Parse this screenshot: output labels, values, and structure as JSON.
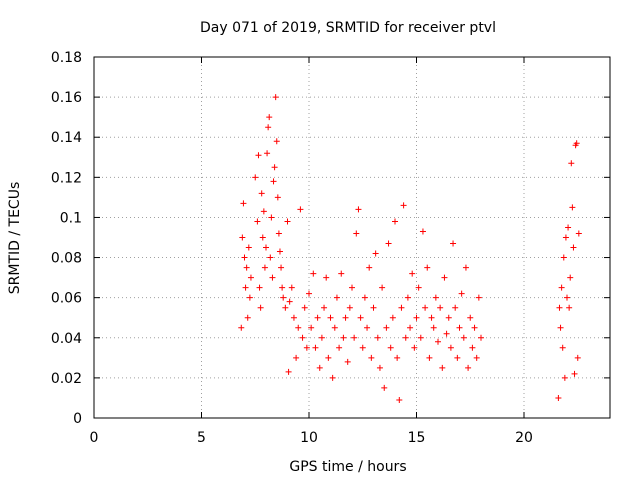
{
  "chart_data": {
    "type": "scatter",
    "title": "Day 071 of 2019, SRMTID for receiver ptvl",
    "xlabel": "GPS time / hours",
    "ylabel": "SRMTID / TECUs",
    "xlim": [
      0,
      24
    ],
    "ylim": [
      0,
      0.18
    ],
    "xticks": [
      0,
      5,
      10,
      15,
      20
    ],
    "xtick_labels": [
      "0",
      "5",
      "10",
      "15",
      "20"
    ],
    "yticks": [
      0,
      0.02,
      0.04,
      0.06,
      0.08,
      0.1,
      0.12,
      0.14,
      0.16,
      0.18
    ],
    "ytick_labels": [
      "0",
      "0.02",
      "0.04",
      "0.06",
      "0.08",
      "0.1",
      "0.12",
      "0.14",
      "0.16",
      "0.18"
    ],
    "grid": true,
    "marker": "+",
    "series": [
      {
        "name": "SRMTID",
        "color": "#ff0000",
        "points": [
          [
            6.85,
            0.045
          ],
          [
            6.9,
            0.09
          ],
          [
            6.95,
            0.107
          ],
          [
            7.0,
            0.08
          ],
          [
            7.05,
            0.065
          ],
          [
            7.1,
            0.075
          ],
          [
            7.15,
            0.05
          ],
          [
            7.2,
            0.085
          ],
          [
            7.25,
            0.06
          ],
          [
            7.3,
            0.07
          ],
          [
            7.5,
            0.12
          ],
          [
            7.6,
            0.098
          ],
          [
            7.65,
            0.131
          ],
          [
            7.7,
            0.065
          ],
          [
            7.75,
            0.055
          ],
          [
            7.8,
            0.112
          ],
          [
            7.85,
            0.09
          ],
          [
            7.9,
            0.103
          ],
          [
            7.95,
            0.075
          ],
          [
            8.0,
            0.085
          ],
          [
            8.05,
            0.132
          ],
          [
            8.1,
            0.145
          ],
          [
            8.15,
            0.15
          ],
          [
            8.2,
            0.08
          ],
          [
            8.25,
            0.1
          ],
          [
            8.3,
            0.07
          ],
          [
            8.35,
            0.118
          ],
          [
            8.4,
            0.125
          ],
          [
            8.45,
            0.16
          ],
          [
            8.5,
            0.138
          ],
          [
            8.55,
            0.11
          ],
          [
            8.6,
            0.092
          ],
          [
            8.65,
            0.083
          ],
          [
            8.7,
            0.075
          ],
          [
            8.75,
            0.065
          ],
          [
            8.8,
            0.06
          ],
          [
            8.9,
            0.055
          ],
          [
            9.0,
            0.098
          ],
          [
            9.05,
            0.023
          ],
          [
            9.1,
            0.058
          ],
          [
            9.2,
            0.065
          ],
          [
            9.3,
            0.05
          ],
          [
            9.4,
            0.03
          ],
          [
            9.5,
            0.045
          ],
          [
            9.6,
            0.104
          ],
          [
            9.7,
            0.04
          ],
          [
            9.8,
            0.055
          ],
          [
            9.9,
            0.035
          ],
          [
            10.0,
            0.062
          ],
          [
            10.1,
            0.045
          ],
          [
            10.2,
            0.072
          ],
          [
            10.3,
            0.035
          ],
          [
            10.4,
            0.05
          ],
          [
            10.5,
            0.025
          ],
          [
            10.6,
            0.04
          ],
          [
            10.7,
            0.055
          ],
          [
            10.8,
            0.07
          ],
          [
            10.9,
            0.03
          ],
          [
            11.0,
            0.05
          ],
          [
            11.1,
            0.02
          ],
          [
            11.2,
            0.045
          ],
          [
            11.3,
            0.06
          ],
          [
            11.4,
            0.035
          ],
          [
            11.5,
            0.072
          ],
          [
            11.6,
            0.04
          ],
          [
            11.7,
            0.05
          ],
          [
            11.8,
            0.028
          ],
          [
            11.9,
            0.055
          ],
          [
            12.0,
            0.065
          ],
          [
            12.1,
            0.04
          ],
          [
            12.2,
            0.092
          ],
          [
            12.3,
            0.104
          ],
          [
            12.4,
            0.05
          ],
          [
            12.5,
            0.035
          ],
          [
            12.6,
            0.06
          ],
          [
            12.7,
            0.045
          ],
          [
            12.8,
            0.075
          ],
          [
            12.9,
            0.03
          ],
          [
            13.0,
            0.055
          ],
          [
            13.1,
            0.082
          ],
          [
            13.2,
            0.04
          ],
          [
            13.3,
            0.025
          ],
          [
            13.4,
            0.065
          ],
          [
            13.5,
            0.015
          ],
          [
            13.6,
            0.045
          ],
          [
            13.7,
            0.087
          ],
          [
            13.8,
            0.035
          ],
          [
            13.9,
            0.05
          ],
          [
            14.0,
            0.098
          ],
          [
            14.1,
            0.03
          ],
          [
            14.2,
            0.009
          ],
          [
            14.3,
            0.055
          ],
          [
            14.4,
            0.106
          ],
          [
            14.5,
            0.04
          ],
          [
            14.6,
            0.06
          ],
          [
            14.7,
            0.045
          ],
          [
            14.8,
            0.072
          ],
          [
            14.9,
            0.035
          ],
          [
            15.0,
            0.05
          ],
          [
            15.1,
            0.065
          ],
          [
            15.2,
            0.04
          ],
          [
            15.3,
            0.093
          ],
          [
            15.4,
            0.055
          ],
          [
            15.5,
            0.075
          ],
          [
            15.6,
            0.03
          ],
          [
            15.7,
            0.05
          ],
          [
            15.8,
            0.045
          ],
          [
            15.9,
            0.06
          ],
          [
            16.0,
            0.038
          ],
          [
            16.1,
            0.055
          ],
          [
            16.2,
            0.025
          ],
          [
            16.3,
            0.07
          ],
          [
            16.4,
            0.042
          ],
          [
            16.5,
            0.05
          ],
          [
            16.6,
            0.035
          ],
          [
            16.7,
            0.087
          ],
          [
            16.8,
            0.055
          ],
          [
            16.9,
            0.03
          ],
          [
            17.0,
            0.045
          ],
          [
            17.1,
            0.062
          ],
          [
            17.2,
            0.04
          ],
          [
            17.3,
            0.075
          ],
          [
            17.4,
            0.025
          ],
          [
            17.5,
            0.05
          ],
          [
            17.6,
            0.035
          ],
          [
            17.7,
            0.045
          ],
          [
            17.8,
            0.03
          ],
          [
            17.9,
            0.06
          ],
          [
            18.0,
            0.04
          ],
          [
            21.6,
            0.01
          ],
          [
            21.65,
            0.055
          ],
          [
            21.7,
            0.045
          ],
          [
            21.75,
            0.065
          ],
          [
            21.8,
            0.035
          ],
          [
            21.85,
            0.08
          ],
          [
            21.9,
            0.02
          ],
          [
            21.95,
            0.09
          ],
          [
            22.0,
            0.06
          ],
          [
            22.05,
            0.095
          ],
          [
            22.1,
            0.055
          ],
          [
            22.15,
            0.07
          ],
          [
            22.2,
            0.127
          ],
          [
            22.25,
            0.105
          ],
          [
            22.3,
            0.085
          ],
          [
            22.35,
            0.022
          ],
          [
            22.4,
            0.136
          ],
          [
            22.45,
            0.137
          ],
          [
            22.5,
            0.03
          ],
          [
            22.55,
            0.092
          ]
        ]
      }
    ]
  }
}
